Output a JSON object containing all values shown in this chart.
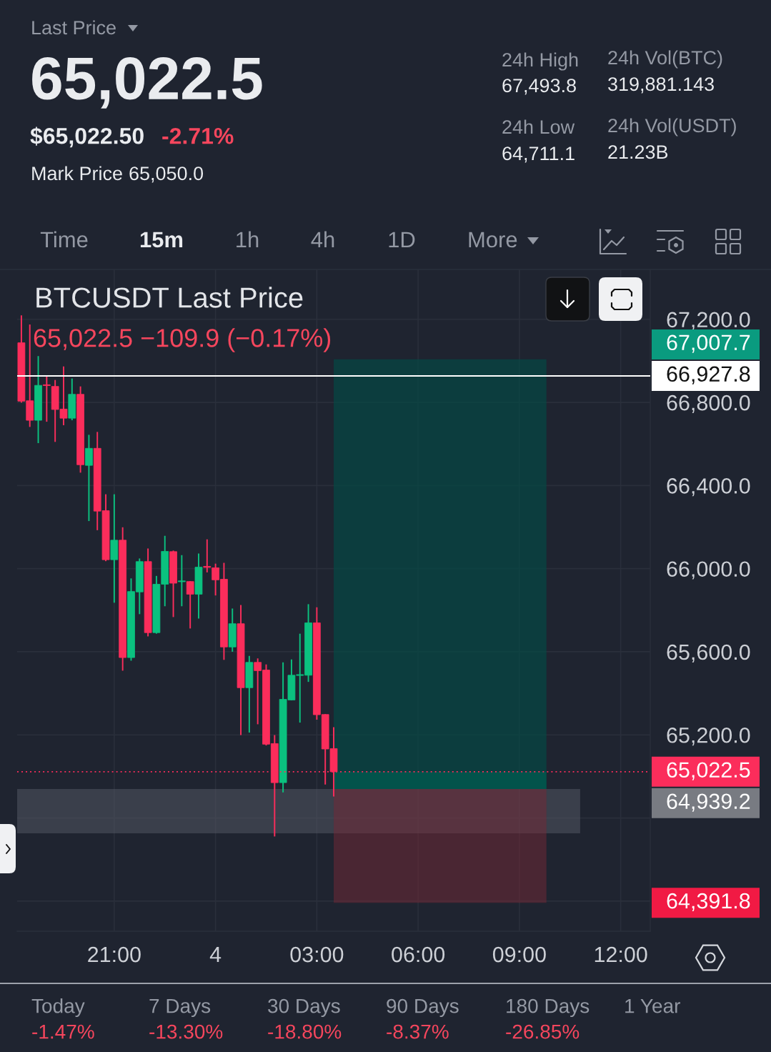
{
  "chart_data": {
    "type": "candlestick",
    "title": "BTCUSDT Last Price",
    "categories": [
      null,
      null,
      null,
      null,
      null,
      null,
      null,
      null,
      null,
      null,
      null,
      "21:00",
      null,
      null,
      null,
      null,
      null,
      null,
      null,
      null,
      null,
      null,
      null,
      "4",
      null,
      null,
      null,
      null,
      null,
      null,
      null,
      null,
      null,
      null,
      null,
      "03:00",
      null,
      null,
      null,
      null,
      null,
      null,
      null,
      null,
      null,
      null,
      null,
      "06:00",
      null,
      null,
      null,
      null,
      null,
      null,
      null,
      null,
      null,
      null,
      null,
      "09:00",
      null,
      null,
      null,
      null,
      null,
      null,
      null,
      null,
      null,
      null,
      null,
      "12:00",
      null,
      null,
      null
    ],
    "ohlc": [
      [
        67087,
        67219,
        66799,
        66806
      ],
      [
        66808,
        67175,
        66682,
        66714
      ],
      [
        66714,
        67023,
        66604,
        66882
      ],
      [
        66885,
        66929,
        66707,
        66881
      ],
      [
        66877,
        66908,
        66610,
        66766
      ],
      [
        66768,
        66973,
        66690,
        66724
      ],
      [
        66724,
        66915,
        66714,
        66839
      ],
      [
        66839,
        66877,
        66462,
        66500
      ],
      [
        66497,
        66644,
        66229,
        66579
      ],
      [
        66579,
        66658,
        66185,
        66277
      ],
      [
        66279,
        66358,
        66036,
        66043
      ],
      [
        66043,
        66358,
        65836,
        66137
      ],
      [
        66137,
        66199,
        65509,
        65572
      ],
      [
        65572,
        65953,
        65557,
        65890
      ],
      [
        65888,
        66049,
        65781,
        66034
      ],
      [
        66034,
        66097,
        65674,
        65692
      ],
      [
        65692,
        65965,
        65687,
        65925
      ],
      [
        65925,
        66158,
        65819,
        66083
      ],
      [
        66082,
        66087,
        65767,
        65930
      ],
      [
        65937,
        66065,
        65819,
        65941
      ],
      [
        65938,
        65940,
        65712,
        65877
      ],
      [
        65877,
        66073,
        65760,
        66007
      ],
      [
        66011,
        66141,
        65982,
        66006
      ],
      [
        66004,
        66024,
        65871,
        65946
      ],
      [
        65949,
        66028,
        65561,
        65623
      ],
      [
        65623,
        65808,
        65600,
        65735
      ],
      [
        65735,
        65825,
        65199,
        65427
      ],
      [
        65427,
        65580,
        65211,
        65549
      ],
      [
        65549,
        65568,
        65251,
        65509
      ],
      [
        65512,
        65539,
        65149,
        65155
      ],
      [
        65158,
        65199,
        64711,
        64970
      ],
      [
        64970,
        65549,
        64923,
        65371
      ],
      [
        65368,
        65563,
        65366,
        65487
      ],
      [
        65486,
        65687,
        65259,
        65490
      ],
      [
        65487,
        65829,
        65455,
        65739
      ],
      [
        65739,
        65814,
        65273,
        65297
      ],
      [
        65298,
        65300,
        64961,
        65132
      ],
      [
        65134,
        65237,
        64903,
        65022.5
      ],
      null,
      null,
      null,
      null,
      null,
      null,
      null,
      null,
      null,
      null,
      null,
      null,
      null,
      null,
      null,
      null,
      null,
      null,
      null,
      null,
      null,
      null,
      null,
      null,
      null,
      null,
      null,
      null,
      null,
      null,
      null,
      null,
      null,
      null,
      null,
      null,
      null
    ],
    "colors": [
      "#fb2d5b",
      "#fb2d5b",
      "#0bc17f",
      "#fb2d5b",
      "#fb2d5b",
      "#fb2d5b",
      "#0bc17f",
      "#fb2d5b",
      "#0bc17f",
      "#fb2d5b",
      "#fb2d5b",
      "#0bc17f",
      "#fb2d5b",
      "#0bc17f",
      "#0bc17f",
      "#fb2d5b",
      "#0bc17f",
      "#0bc17f",
      "#fb2d5b",
      "#0bc17f",
      "#fb2d5b",
      "#0bc17f",
      "#fb2d5b",
      "#fb2d5b",
      "#fb2d5b",
      "#0bc17f",
      "#fb2d5b",
      "#0bc17f",
      "#fb2d5b",
      "#fb2d5b",
      "#fb2d5b",
      "#0bc17f",
      "#0bc17f",
      "#0bc17f",
      "#0bc17f",
      "#fb2d5b",
      "#fb2d5b",
      "#fb2d5b",
      null,
      null,
      null,
      null,
      null,
      null,
      null,
      null,
      null,
      null,
      null,
      null,
      null,
      null,
      null,
      null,
      null,
      null,
      null,
      null,
      null,
      null,
      null,
      null,
      null,
      null,
      null,
      null,
      null,
      null,
      null,
      null,
      null,
      null,
      null,
      null,
      null
    ],
    "bands": [
      {
        "axis": "y",
        "from": 64726,
        "to": 64939.2,
        "color": "#3a3f4b"
      },
      {
        "axis": "y",
        "from": 64939.2,
        "to": 67007.7,
        "color": "#0c3d3f"
      },
      {
        "axis": "y",
        "from": 64939.2,
        "to": 65022.5,
        "color": "#04504a"
      },
      {
        "axis": "y",
        "from": 64391.8,
        "to": 64939.2,
        "color": "#4a2633"
      }
    ],
    "ylim": [
      64255,
      67440
    ],
    "yticks": [
      {
        "value": 64400,
        "label": null
      },
      {
        "value": 64800,
        "label": null
      },
      {
        "value": 65200,
        "label": "65,200.0"
      },
      {
        "value": 65600,
        "label": "65,600.0"
      },
      {
        "value": 66000,
        "label": "66,000.0"
      },
      {
        "value": 66400,
        "label": "66,400.0"
      },
      {
        "value": 66800,
        "label": "66,800.0"
      },
      {
        "value": 67200,
        "label": "67,200.0"
      }
    ],
    "grid": true,
    "ref_lines": [
      {
        "axis": "y",
        "value": 66927.8,
        "label": "66,927.8",
        "color": "#ffffff",
        "line_style": "solid"
      },
      {
        "axis": "y",
        "value": 65022.5,
        "label": "65,022.5",
        "color": "#fb2d5b",
        "line_style": "dotted"
      }
    ],
    "annotations": [
      "Last Price",
      "65,022.5",
      "$65,022.50",
      "-2.71%",
      "Mark Price",
      "65,050.0",
      "24h High",
      "67,493.8",
      "24h Vol(BTC)",
      "319,881.143",
      "24h Low",
      "64,711.1",
      "24h Vol(USDT)",
      "21.23B",
      "Time",
      "15m",
      "1h",
      "4h",
      "1D",
      "More",
      "65,022.5 −109.9 (−0.17%)",
      "Today",
      "-1.47%",
      "7 Days",
      "-13.30%",
      "30 Days",
      "-18.80%",
      "90 Days",
      "-8.37%",
      "180 Days",
      "-26.85%",
      "1 Year",
      "67,007.7",
      "64,939.2",
      "64,391.8"
    ]
  }
}
